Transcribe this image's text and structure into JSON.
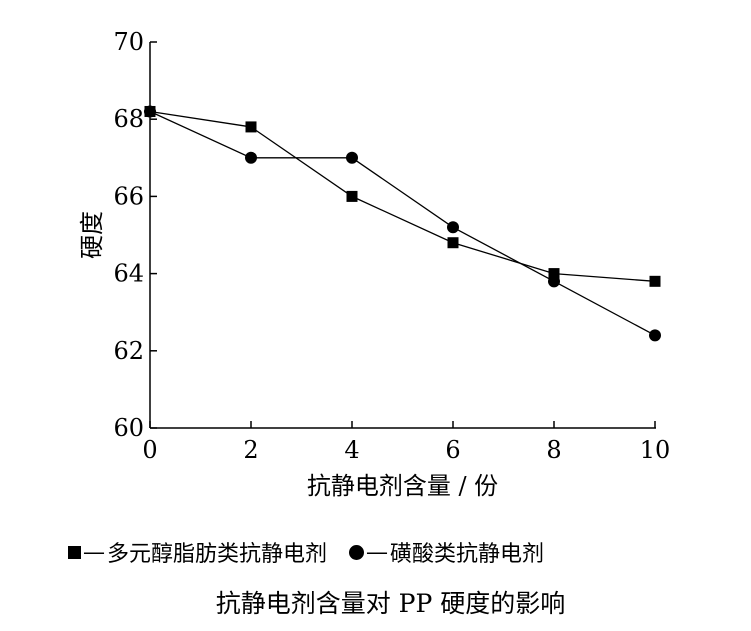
{
  "chart_data": {
    "type": "line",
    "xlabel": "抗静电剂含量 / 份",
    "ylabel": "硬度",
    "xlim": [
      0,
      10
    ],
    "ylim": [
      60,
      70
    ],
    "x_ticks": [
      "0",
      "2",
      "4",
      "6",
      "8",
      "10"
    ],
    "y_ticks": [
      "60",
      "62",
      "64",
      "66",
      "68",
      "70"
    ],
    "grid": false,
    "series": [
      {
        "name": "多元醇脂肪类抗静电剂",
        "marker": "square",
        "x": [
          0,
          2,
          4,
          6,
          8,
          10
        ],
        "values": [
          68.2,
          67.8,
          66.0,
          64.8,
          64.0,
          63.8
        ]
      },
      {
        "name": "磺酸类抗静电剂",
        "marker": "circle",
        "x": [
          0,
          2,
          4,
          6,
          8,
          10
        ],
        "values": [
          68.2,
          67.0,
          67.0,
          65.2,
          63.8,
          62.4
        ]
      }
    ],
    "legend": {
      "placement": "bottom",
      "dash": "—"
    },
    "caption": "抗静电剂含量对 PP 硬度的影响"
  }
}
